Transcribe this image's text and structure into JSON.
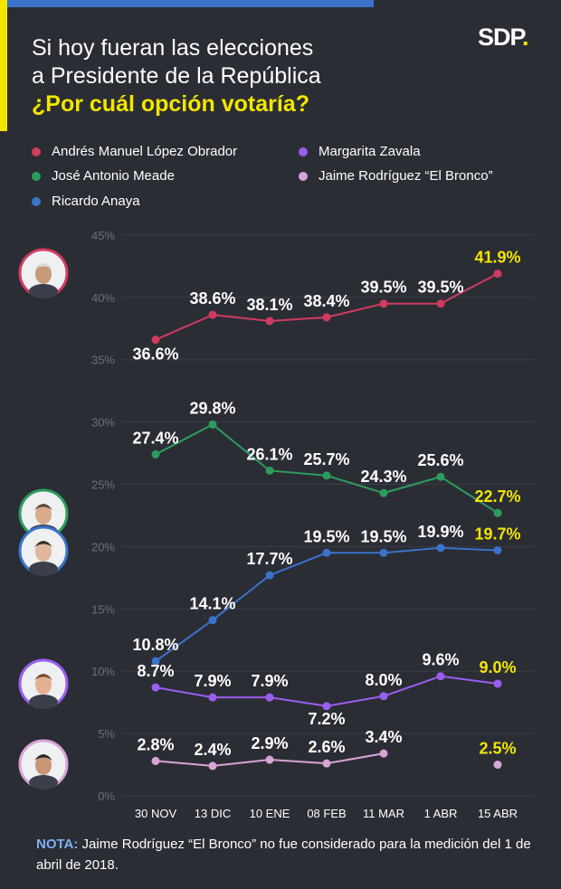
{
  "header": {
    "title_line1": "Si hoy fueran las elecciones",
    "title_line2": "a Presidente de la República",
    "question": "¿Por cuál opción votaría?",
    "logo": "SDP",
    "logo_dot": "."
  },
  "colors": {
    "background": "#2b2d35",
    "accent_blue": "#3a73c9",
    "highlight_yellow": "#f2e600",
    "grid": "#3b3d46"
  },
  "legend": [
    {
      "label": "Andrés Manuel López Obrador",
      "color": "#d13b5f"
    },
    {
      "label": "José Antonio Meade",
      "color": "#2c9c5e"
    },
    {
      "label": "Ricardo Anaya",
      "color": "#3a73c9"
    },
    {
      "label": "Margarita Zavala",
      "color": "#9a5ff0"
    },
    {
      "label": "Jaime Rodríguez “El Bronco”",
      "color": "#d8a4d6"
    }
  ],
  "chart_data": {
    "type": "line",
    "categories": [
      "30 NOV",
      "13 DIC",
      "10 ENE",
      "08 FEB",
      "11 MAR",
      "1 ABR",
      "15 ABR"
    ],
    "ylim": [
      0,
      45
    ],
    "yticks": [
      "0%",
      "5%",
      "10%",
      "15%",
      "20%",
      "25%",
      "30%",
      "35%",
      "40%",
      "45%"
    ],
    "grid": true,
    "series": [
      {
        "name": "Andrés Manuel López Obrador",
        "color": "#d13b5f",
        "values": [
          36.6,
          38.6,
          38.1,
          38.4,
          39.5,
          39.5,
          41.9
        ],
        "labels": [
          "36.6%",
          "38.6%",
          "38.1%",
          "38.4%",
          "39.5%",
          "39.5%",
          "41.9%"
        ],
        "avatar": "amlo-avatar"
      },
      {
        "name": "José Antonio Meade",
        "color": "#2c9c5e",
        "values": [
          27.4,
          29.8,
          26.1,
          25.7,
          24.3,
          25.6,
          22.7
        ],
        "labels": [
          "27.4%",
          "29.8%",
          "26.1%",
          "25.7%",
          "24.3%",
          "25.6%",
          "22.7%"
        ],
        "avatar": "meade-avatar"
      },
      {
        "name": "Ricardo Anaya",
        "color": "#3a73c9",
        "values": [
          10.8,
          14.1,
          17.7,
          19.5,
          19.5,
          19.9,
          19.7
        ],
        "labels": [
          "10.8%",
          "14.1%",
          "17.7%",
          "19.5%",
          "19.5%",
          "19.9%",
          "19.7%"
        ],
        "avatar": "anaya-avatar"
      },
      {
        "name": "Margarita Zavala",
        "color": "#9a5ff0",
        "values": [
          8.7,
          7.9,
          7.9,
          7.2,
          8.0,
          9.6,
          9.0
        ],
        "labels": [
          "8.7%",
          "7.9%",
          "7.9%",
          "7.2%",
          "8.0%",
          "9.6%",
          "9.0%"
        ],
        "avatar": "zavala-avatar"
      },
      {
        "name": "Jaime Rodríguez “El Bronco”",
        "color": "#d8a4d6",
        "values": [
          2.8,
          2.4,
          2.9,
          2.6,
          3.4,
          null,
          2.5
        ],
        "labels": [
          "2.8%",
          "2.4%",
          "2.9%",
          "2.6%",
          "3.4%",
          null,
          "2.5%"
        ],
        "avatar": "bronco-avatar"
      }
    ]
  },
  "note": {
    "label": "NOTA:",
    "text": " Jaime Rodríguez “El Bronco” no fue considerado para la medición del 1 de abril de 2018."
  }
}
